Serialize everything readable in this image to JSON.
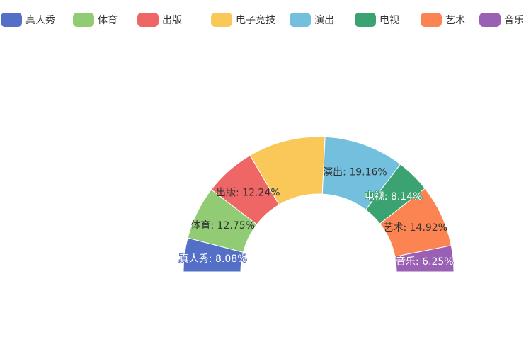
{
  "chart_data": {
    "type": "pie",
    "variant": "half-donut",
    "categories": [
      "真人秀",
      "体育",
      "出版",
      "电子竞技",
      "演出",
      "电视",
      "艺术",
      "音乐"
    ],
    "values": [
      8.08,
      12.75,
      12.24,
      18.46,
      19.16,
      8.14,
      14.92,
      6.25
    ],
    "labels_shown": [
      {
        "category": "真人秀",
        "text": "真人秀: 8.08%"
      },
      {
        "category": "体育",
        "text": "体育: 12.75%"
      },
      {
        "category": "出版",
        "text": "出版: 12.24%"
      },
      {
        "category": "电子竞技",
        "text": ""
      },
      {
        "category": "演出",
        "text": "演出: 19.16%"
      },
      {
        "category": "电视",
        "text": "电视: 8.14%"
      },
      {
        "category": "艺术",
        "text": "艺术: 14.92%"
      },
      {
        "category": "音乐",
        "text": "音乐: 6.25%"
      }
    ],
    "legend": {
      "position": "top-right",
      "items": [
        "真人秀",
        "体育",
        "出版",
        "电子竞技",
        "演出",
        "电视",
        "艺术",
        "音乐"
      ]
    },
    "colors": [
      "#5470c6",
      "#91cc75",
      "#ee6666",
      "#fac858",
      "#73c0de",
      "#3ba272",
      "#fc8452",
      "#9a60b4"
    ],
    "title": ""
  }
}
